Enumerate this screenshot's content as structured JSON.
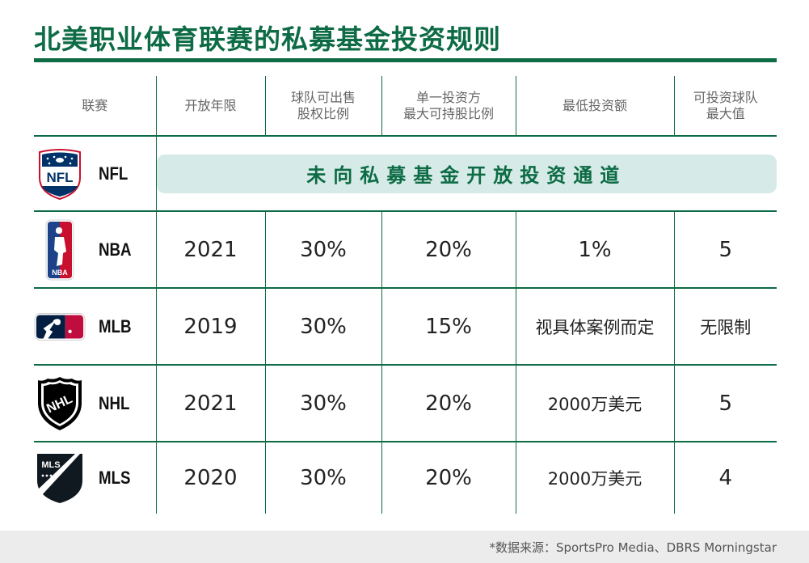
{
  "title": "北美职业体育联赛的私募基金投资规则",
  "headers": {
    "league": "联赛",
    "opened": "开放年限",
    "sell_line1": "球队可出售",
    "sell_line2": "股权比例",
    "single_line1": "单一投资方",
    "single_line2": "最大可持股比例",
    "min_invest": "最低投资额",
    "max_line1": "可投资球队",
    "max_line2": "最大值"
  },
  "rows": [
    {
      "league": "NFL",
      "logo_icon": "nfl-shield-icon",
      "banner": "未向私募基金开放投资通道"
    },
    {
      "league": "NBA",
      "logo_icon": "nba-logo-icon",
      "year": "2021",
      "sell_pct": "30%",
      "single_pct": "20%",
      "min_invest": "1%",
      "max_teams": "5"
    },
    {
      "league": "MLB",
      "logo_icon": "mlb-logo-icon",
      "year": "2019",
      "sell_pct": "30%",
      "single_pct": "15%",
      "min_invest": "视具体案例而定",
      "max_teams": "无限制"
    },
    {
      "league": "NHL",
      "logo_icon": "nhl-shield-icon",
      "year": "2021",
      "sell_pct": "30%",
      "single_pct": "20%",
      "min_invest": "2000万美元",
      "max_teams": "5"
    },
    {
      "league": "MLS",
      "logo_icon": "mls-crest-icon",
      "year": "2020",
      "sell_pct": "30%",
      "single_pct": "20%",
      "min_invest": "2000万美元",
      "max_teams": "4"
    }
  ],
  "logo_text": {
    "nfl": "NFL",
    "nba": "NBA",
    "nhl": "NHL",
    "mls": "MLS"
  },
  "source": "*数据来源：SportsPro Media、DBRS Morningstar",
  "colors": {
    "accent": "#0d6b45",
    "banner_bg": "#d6ebe7",
    "footer_bg": "#ececec"
  }
}
